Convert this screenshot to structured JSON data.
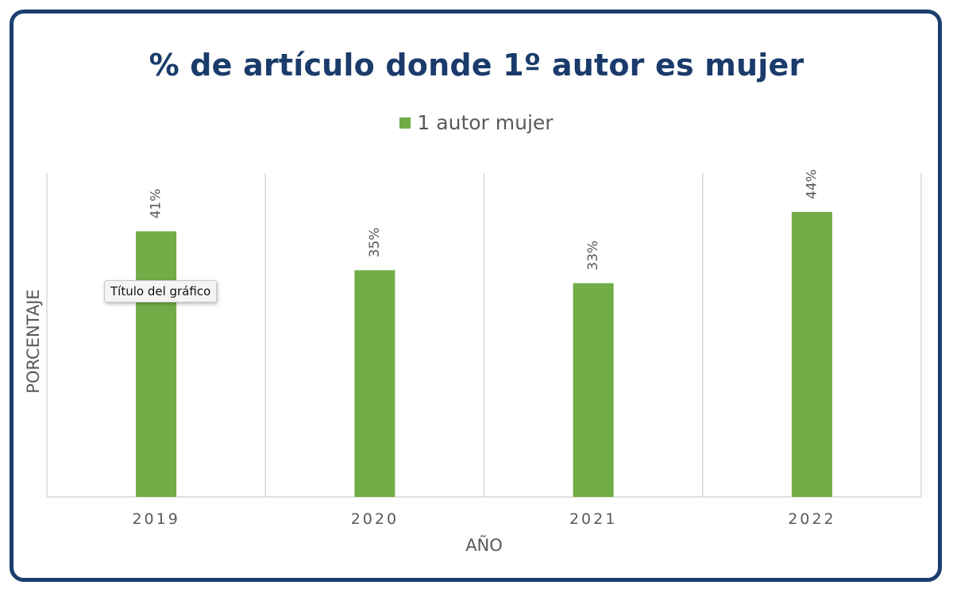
{
  "chart_data": {
    "type": "bar",
    "title": "% de artículo donde 1º autor es mujer",
    "xlabel": "AÑO",
    "ylabel": "PORCENTAJE",
    "categories": [
      "2019",
      "2020",
      "2021",
      "2022"
    ],
    "series": [
      {
        "name": "1 autor mujer",
        "values": [
          41,
          35,
          33,
          44
        ],
        "labels": [
          "41%",
          "35%",
          "33%",
          "44%"
        ],
        "color": "#70ad47"
      }
    ],
    "ylim": [
      0,
      50
    ],
    "grid": "vertical",
    "legend": "top-center"
  },
  "tooltip": {
    "text": "Título del gráfico"
  },
  "colors": {
    "frame": "#1a3f6f",
    "title": "#1a3b6b",
    "text": "#595959",
    "grid": "#d9d9d9"
  }
}
